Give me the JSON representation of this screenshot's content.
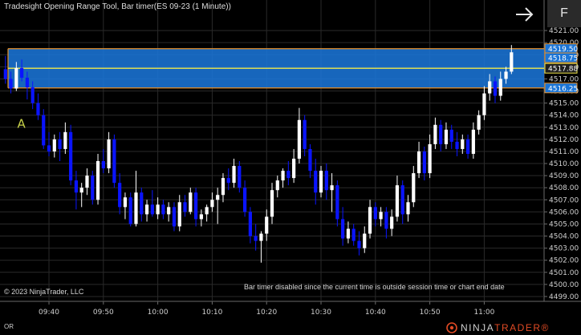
{
  "window": {
    "title": "Tradesight Opening Range Tool, Bar timer(ES 09-23 (1 Minute))",
    "f_button": "F"
  },
  "footer": {
    "copyright": "© 2023 NinjaTrader, LLC",
    "status": "Bar timer disabled since the current time is outside session time or chart end date",
    "tab_label": "OR",
    "logo_part1": "NINJA",
    "logo_part2": "TRADER®"
  },
  "annotation": {
    "label": "A"
  },
  "colors": {
    "background": "#000000",
    "up_candle": "#ffffff",
    "down_candle": "#0a14ff",
    "range_fill": "#1a74d6",
    "range_border": "#e8912a",
    "mid_line": "#f2e84a",
    "label_text": "#c8d24a"
  },
  "price_labels": [
    {
      "text": "4519.50",
      "value": 4519.5,
      "style": "range"
    },
    {
      "text": "4518.75",
      "value": 4518.75,
      "style": "range"
    },
    {
      "text": "4517.88",
      "value": 4517.88,
      "style": "mid"
    },
    {
      "text": "4516.25",
      "value": 4516.25,
      "style": "range"
    }
  ],
  "chart_data": {
    "type": "candlestick",
    "title": "ES 09-23 (1 Minute)",
    "y_ticks": [
      "4499.00",
      "4500.00",
      "4501.00",
      "4502.00",
      "4503.00",
      "4504.00",
      "4505.00",
      "4506.00",
      "4507.00",
      "4508.00",
      "4509.00",
      "4510.00",
      "4511.00",
      "4512.00",
      "4513.00",
      "4514.00",
      "4515.00",
      "4516.00",
      "4517.00",
      "4518.00",
      "4519.00",
      "4520.00",
      "4521.00"
    ],
    "ylim": [
      4498.6,
      4522.2
    ],
    "x_ticks": [
      "09:40",
      "09:50",
      "10:00",
      "10:10",
      "10:20",
      "10:30",
      "10:40",
      "10:50",
      "11:00"
    ],
    "x_range": [
      "09:31",
      "11:11"
    ],
    "opening_range": {
      "high": 4519.5,
      "low": 4516.25,
      "mid": 4517.88,
      "upper": 4518.75
    },
    "grid": true,
    "candles": [
      {
        "t": "09:32",
        "o": 4517.8,
        "h": 4518.9,
        "l": 4516.6,
        "c": 4517.0
      },
      {
        "t": "09:33",
        "o": 4517.0,
        "h": 4517.6,
        "l": 4515.8,
        "c": 4516.2
      },
      {
        "t": "09:34",
        "o": 4516.2,
        "h": 4518.4,
        "l": 4516.0,
        "c": 4517.9
      },
      {
        "t": "09:35",
        "o": 4517.9,
        "h": 4518.6,
        "l": 4516.8,
        "c": 4517.1
      },
      {
        "t": "09:36",
        "o": 4517.1,
        "h": 4517.6,
        "l": 4515.3,
        "c": 4516.3
      },
      {
        "t": "09:37",
        "o": 4516.3,
        "h": 4516.8,
        "l": 4514.5,
        "c": 4515.0
      },
      {
        "t": "09:38",
        "o": 4515.0,
        "h": 4515.8,
        "l": 4513.6,
        "c": 4514.0
      },
      {
        "t": "09:39",
        "o": 4514.0,
        "h": 4514.5,
        "l": 4511.2,
        "c": 4511.5
      },
      {
        "t": "09:40",
        "o": 4511.5,
        "h": 4512.6,
        "l": 4510.6,
        "c": 4511.0
      },
      {
        "t": "09:41",
        "o": 4511.0,
        "h": 4512.4,
        "l": 4510.5,
        "c": 4512.0
      },
      {
        "t": "09:42",
        "o": 4512.0,
        "h": 4512.6,
        "l": 4510.2,
        "c": 4511.2
      },
      {
        "t": "09:43",
        "o": 4511.2,
        "h": 4513.4,
        "l": 4510.8,
        "c": 4512.6
      },
      {
        "t": "09:44",
        "o": 4512.6,
        "h": 4513.2,
        "l": 4508.2,
        "c": 4508.6
      },
      {
        "t": "09:45",
        "o": 4508.6,
        "h": 4509.4,
        "l": 4506.2,
        "c": 4507.6
      },
      {
        "t": "09:46",
        "o": 4507.6,
        "h": 4508.4,
        "l": 4506.4,
        "c": 4508.0
      },
      {
        "t": "09:47",
        "o": 4508.0,
        "h": 4509.6,
        "l": 4507.4,
        "c": 4509.0
      },
      {
        "t": "09:48",
        "o": 4509.0,
        "h": 4509.4,
        "l": 4506.6,
        "c": 4507.0
      },
      {
        "t": "09:49",
        "o": 4507.0,
        "h": 4510.8,
        "l": 4506.6,
        "c": 4510.2
      },
      {
        "t": "09:50",
        "o": 4510.2,
        "h": 4511.2,
        "l": 4509.2,
        "c": 4509.6
      },
      {
        "t": "09:51",
        "o": 4509.6,
        "h": 4512.6,
        "l": 4509.2,
        "c": 4512.0
      },
      {
        "t": "09:52",
        "o": 4512.0,
        "h": 4512.4,
        "l": 4508.0,
        "c": 4508.4
      },
      {
        "t": "09:53",
        "o": 4508.4,
        "h": 4509.2,
        "l": 4505.8,
        "c": 4506.4
      },
      {
        "t": "09:54",
        "o": 4506.4,
        "h": 4507.6,
        "l": 4505.4,
        "c": 4507.2
      },
      {
        "t": "09:55",
        "o": 4507.2,
        "h": 4507.6,
        "l": 4504.8,
        "c": 4505.0
      },
      {
        "t": "09:56",
        "o": 4505.0,
        "h": 4509.4,
        "l": 4504.8,
        "c": 4507.6
      },
      {
        "t": "09:57",
        "o": 4507.6,
        "h": 4508.0,
        "l": 4505.2,
        "c": 4505.8
      },
      {
        "t": "09:58",
        "o": 4505.8,
        "h": 4507.0,
        "l": 4505.2,
        "c": 4506.6
      },
      {
        "t": "09:59",
        "o": 4506.6,
        "h": 4507.8,
        "l": 4505.6,
        "c": 4505.8
      },
      {
        "t": "10:00",
        "o": 4505.8,
        "h": 4507.2,
        "l": 4505.4,
        "c": 4506.6
      },
      {
        "t": "10:01",
        "o": 4506.6,
        "h": 4507.0,
        "l": 4505.4,
        "c": 4505.8
      },
      {
        "t": "10:02",
        "o": 4505.8,
        "h": 4506.8,
        "l": 4505.2,
        "c": 4506.4
      },
      {
        "t": "10:03",
        "o": 4506.4,
        "h": 4506.8,
        "l": 4504.4,
        "c": 4504.8
      },
      {
        "t": "10:04",
        "o": 4504.8,
        "h": 4507.4,
        "l": 4504.4,
        "c": 4506.8
      },
      {
        "t": "10:05",
        "o": 4506.8,
        "h": 4507.4,
        "l": 4505.6,
        "c": 4506.0
      },
      {
        "t": "10:06",
        "o": 4506.0,
        "h": 4508.0,
        "l": 4505.8,
        "c": 4507.6
      },
      {
        "t": "10:07",
        "o": 4507.6,
        "h": 4508.0,
        "l": 4504.8,
        "c": 4505.4
      },
      {
        "t": "10:08",
        "o": 4505.4,
        "h": 4506.2,
        "l": 4504.8,
        "c": 4505.8
      },
      {
        "t": "10:09",
        "o": 4505.8,
        "h": 4506.6,
        "l": 4505.2,
        "c": 4506.4
      },
      {
        "t": "10:10",
        "o": 4506.4,
        "h": 4507.6,
        "l": 4506.0,
        "c": 4507.0
      },
      {
        "t": "10:11",
        "o": 4507.0,
        "h": 4508.0,
        "l": 4505.0,
        "c": 4507.4
      },
      {
        "t": "10:12",
        "o": 4507.4,
        "h": 4509.2,
        "l": 4506.8,
        "c": 4508.8
      },
      {
        "t": "10:13",
        "o": 4508.8,
        "h": 4509.6,
        "l": 4507.8,
        "c": 4508.4
      },
      {
        "t": "10:14",
        "o": 4508.4,
        "h": 4510.4,
        "l": 4508.0,
        "c": 4509.8
      },
      {
        "t": "10:15",
        "o": 4509.8,
        "h": 4510.2,
        "l": 4507.6,
        "c": 4508.0
      },
      {
        "t": "10:16",
        "o": 4508.0,
        "h": 4508.6,
        "l": 4505.6,
        "c": 4506.0
      },
      {
        "t": "10:17",
        "o": 4506.0,
        "h": 4506.4,
        "l": 4503.4,
        "c": 4504.0
      },
      {
        "t": "10:18",
        "o": 4504.0,
        "h": 4505.0,
        "l": 4502.8,
        "c": 4503.6
      },
      {
        "t": "10:19",
        "o": 4503.6,
        "h": 4504.4,
        "l": 4501.8,
        "c": 4504.2
      },
      {
        "t": "10:20",
        "o": 4504.2,
        "h": 4506.2,
        "l": 4503.6,
        "c": 4505.6
      },
      {
        "t": "10:21",
        "o": 4505.6,
        "h": 4508.4,
        "l": 4505.0,
        "c": 4507.8
      },
      {
        "t": "10:22",
        "o": 4507.8,
        "h": 4509.0,
        "l": 4507.2,
        "c": 4508.6
      },
      {
        "t": "10:23",
        "o": 4508.6,
        "h": 4509.6,
        "l": 4508.0,
        "c": 4509.4
      },
      {
        "t": "10:24",
        "o": 4509.4,
        "h": 4510.2,
        "l": 4508.2,
        "c": 4508.8
      },
      {
        "t": "10:25",
        "o": 4508.8,
        "h": 4511.2,
        "l": 4508.4,
        "c": 4510.4
      },
      {
        "t": "10:26",
        "o": 4510.4,
        "h": 4514.6,
        "l": 4510.0,
        "c": 4513.6
      },
      {
        "t": "10:27",
        "o": 4513.6,
        "h": 4514.0,
        "l": 4510.6,
        "c": 4511.2
      },
      {
        "t": "10:28",
        "o": 4511.2,
        "h": 4511.6,
        "l": 4508.8,
        "c": 4509.4
      },
      {
        "t": "10:29",
        "o": 4509.4,
        "h": 4510.4,
        "l": 4506.6,
        "c": 4507.6
      },
      {
        "t": "10:30",
        "o": 4507.6,
        "h": 4509.8,
        "l": 4507.2,
        "c": 4509.4
      },
      {
        "t": "10:31",
        "o": 4509.4,
        "h": 4510.0,
        "l": 4507.0,
        "c": 4507.8
      },
      {
        "t": "10:32",
        "o": 4507.8,
        "h": 4509.2,
        "l": 4506.0,
        "c": 4508.2
      },
      {
        "t": "10:33",
        "o": 4508.2,
        "h": 4508.6,
        "l": 4504.8,
        "c": 4505.4
      },
      {
        "t": "10:34",
        "o": 4505.4,
        "h": 4506.4,
        "l": 4503.2,
        "c": 4503.8
      },
      {
        "t": "10:35",
        "o": 4503.8,
        "h": 4505.2,
        "l": 4503.4,
        "c": 4504.6
      },
      {
        "t": "10:36",
        "o": 4504.6,
        "h": 4505.0,
        "l": 4503.2,
        "c": 4503.6
      },
      {
        "t": "10:37",
        "o": 4503.6,
        "h": 4504.4,
        "l": 4502.4,
        "c": 4503.0
      },
      {
        "t": "10:38",
        "o": 4503.0,
        "h": 4504.8,
        "l": 4502.6,
        "c": 4504.2
      },
      {
        "t": "10:39",
        "o": 4504.2,
        "h": 4507.0,
        "l": 4503.8,
        "c": 4506.4
      },
      {
        "t": "10:40",
        "o": 4506.4,
        "h": 4506.8,
        "l": 4504.8,
        "c": 4505.4
      },
      {
        "t": "10:41",
        "o": 4505.4,
        "h": 4506.4,
        "l": 4504.8,
        "c": 4506.0
      },
      {
        "t": "10:42",
        "o": 4506.0,
        "h": 4506.4,
        "l": 4503.8,
        "c": 4504.6
      },
      {
        "t": "10:43",
        "o": 4504.6,
        "h": 4506.2,
        "l": 4504.0,
        "c": 4505.6
      },
      {
        "t": "10:44",
        "o": 4505.6,
        "h": 4509.0,
        "l": 4505.2,
        "c": 4508.2
      },
      {
        "t": "10:45",
        "o": 4508.2,
        "h": 4508.6,
        "l": 4505.0,
        "c": 4505.8
      },
      {
        "t": "10:46",
        "o": 4505.8,
        "h": 4507.4,
        "l": 4505.2,
        "c": 4506.8
      },
      {
        "t": "10:47",
        "o": 4506.8,
        "h": 4509.8,
        "l": 4506.4,
        "c": 4509.2
      },
      {
        "t": "10:48",
        "o": 4509.2,
        "h": 4511.8,
        "l": 4508.8,
        "c": 4511.0
      },
      {
        "t": "10:49",
        "o": 4511.0,
        "h": 4511.4,
        "l": 4508.6,
        "c": 4509.2
      },
      {
        "t": "10:50",
        "o": 4509.2,
        "h": 4512.4,
        "l": 4508.8,
        "c": 4511.6
      },
      {
        "t": "10:51",
        "o": 4511.6,
        "h": 4513.8,
        "l": 4511.2,
        "c": 4513.2
      },
      {
        "t": "10:52",
        "o": 4513.2,
        "h": 4513.6,
        "l": 4511.0,
        "c": 4511.6
      },
      {
        "t": "10:53",
        "o": 4511.6,
        "h": 4513.4,
        "l": 4511.2,
        "c": 4512.8
      },
      {
        "t": "10:54",
        "o": 4512.8,
        "h": 4513.2,
        "l": 4511.2,
        "c": 4511.8
      },
      {
        "t": "10:55",
        "o": 4511.8,
        "h": 4512.6,
        "l": 4510.6,
        "c": 4511.2
      },
      {
        "t": "10:56",
        "o": 4511.2,
        "h": 4512.4,
        "l": 4510.8,
        "c": 4512.0
      },
      {
        "t": "10:57",
        "o": 4512.0,
        "h": 4512.4,
        "l": 4510.4,
        "c": 4510.8
      },
      {
        "t": "10:58",
        "o": 4510.8,
        "h": 4513.4,
        "l": 4510.4,
        "c": 4512.8
      },
      {
        "t": "10:59",
        "o": 4512.8,
        "h": 4514.4,
        "l": 4512.4,
        "c": 4514.0
      },
      {
        "t": "11:00",
        "o": 4514.0,
        "h": 4516.4,
        "l": 4513.6,
        "c": 4515.8
      },
      {
        "t": "11:01",
        "o": 4515.8,
        "h": 4517.4,
        "l": 4515.2,
        "c": 4516.8
      },
      {
        "t": "11:02",
        "o": 4516.8,
        "h": 4517.2,
        "l": 4515.0,
        "c": 4515.6
      },
      {
        "t": "11:03",
        "o": 4515.6,
        "h": 4517.6,
        "l": 4515.2,
        "c": 4517.0
      },
      {
        "t": "11:04",
        "o": 4517.0,
        "h": 4518.0,
        "l": 4516.6,
        "c": 4517.6
      },
      {
        "t": "11:05",
        "o": 4517.6,
        "h": 4519.8,
        "l": 4517.4,
        "c": 4519.2
      }
    ]
  }
}
